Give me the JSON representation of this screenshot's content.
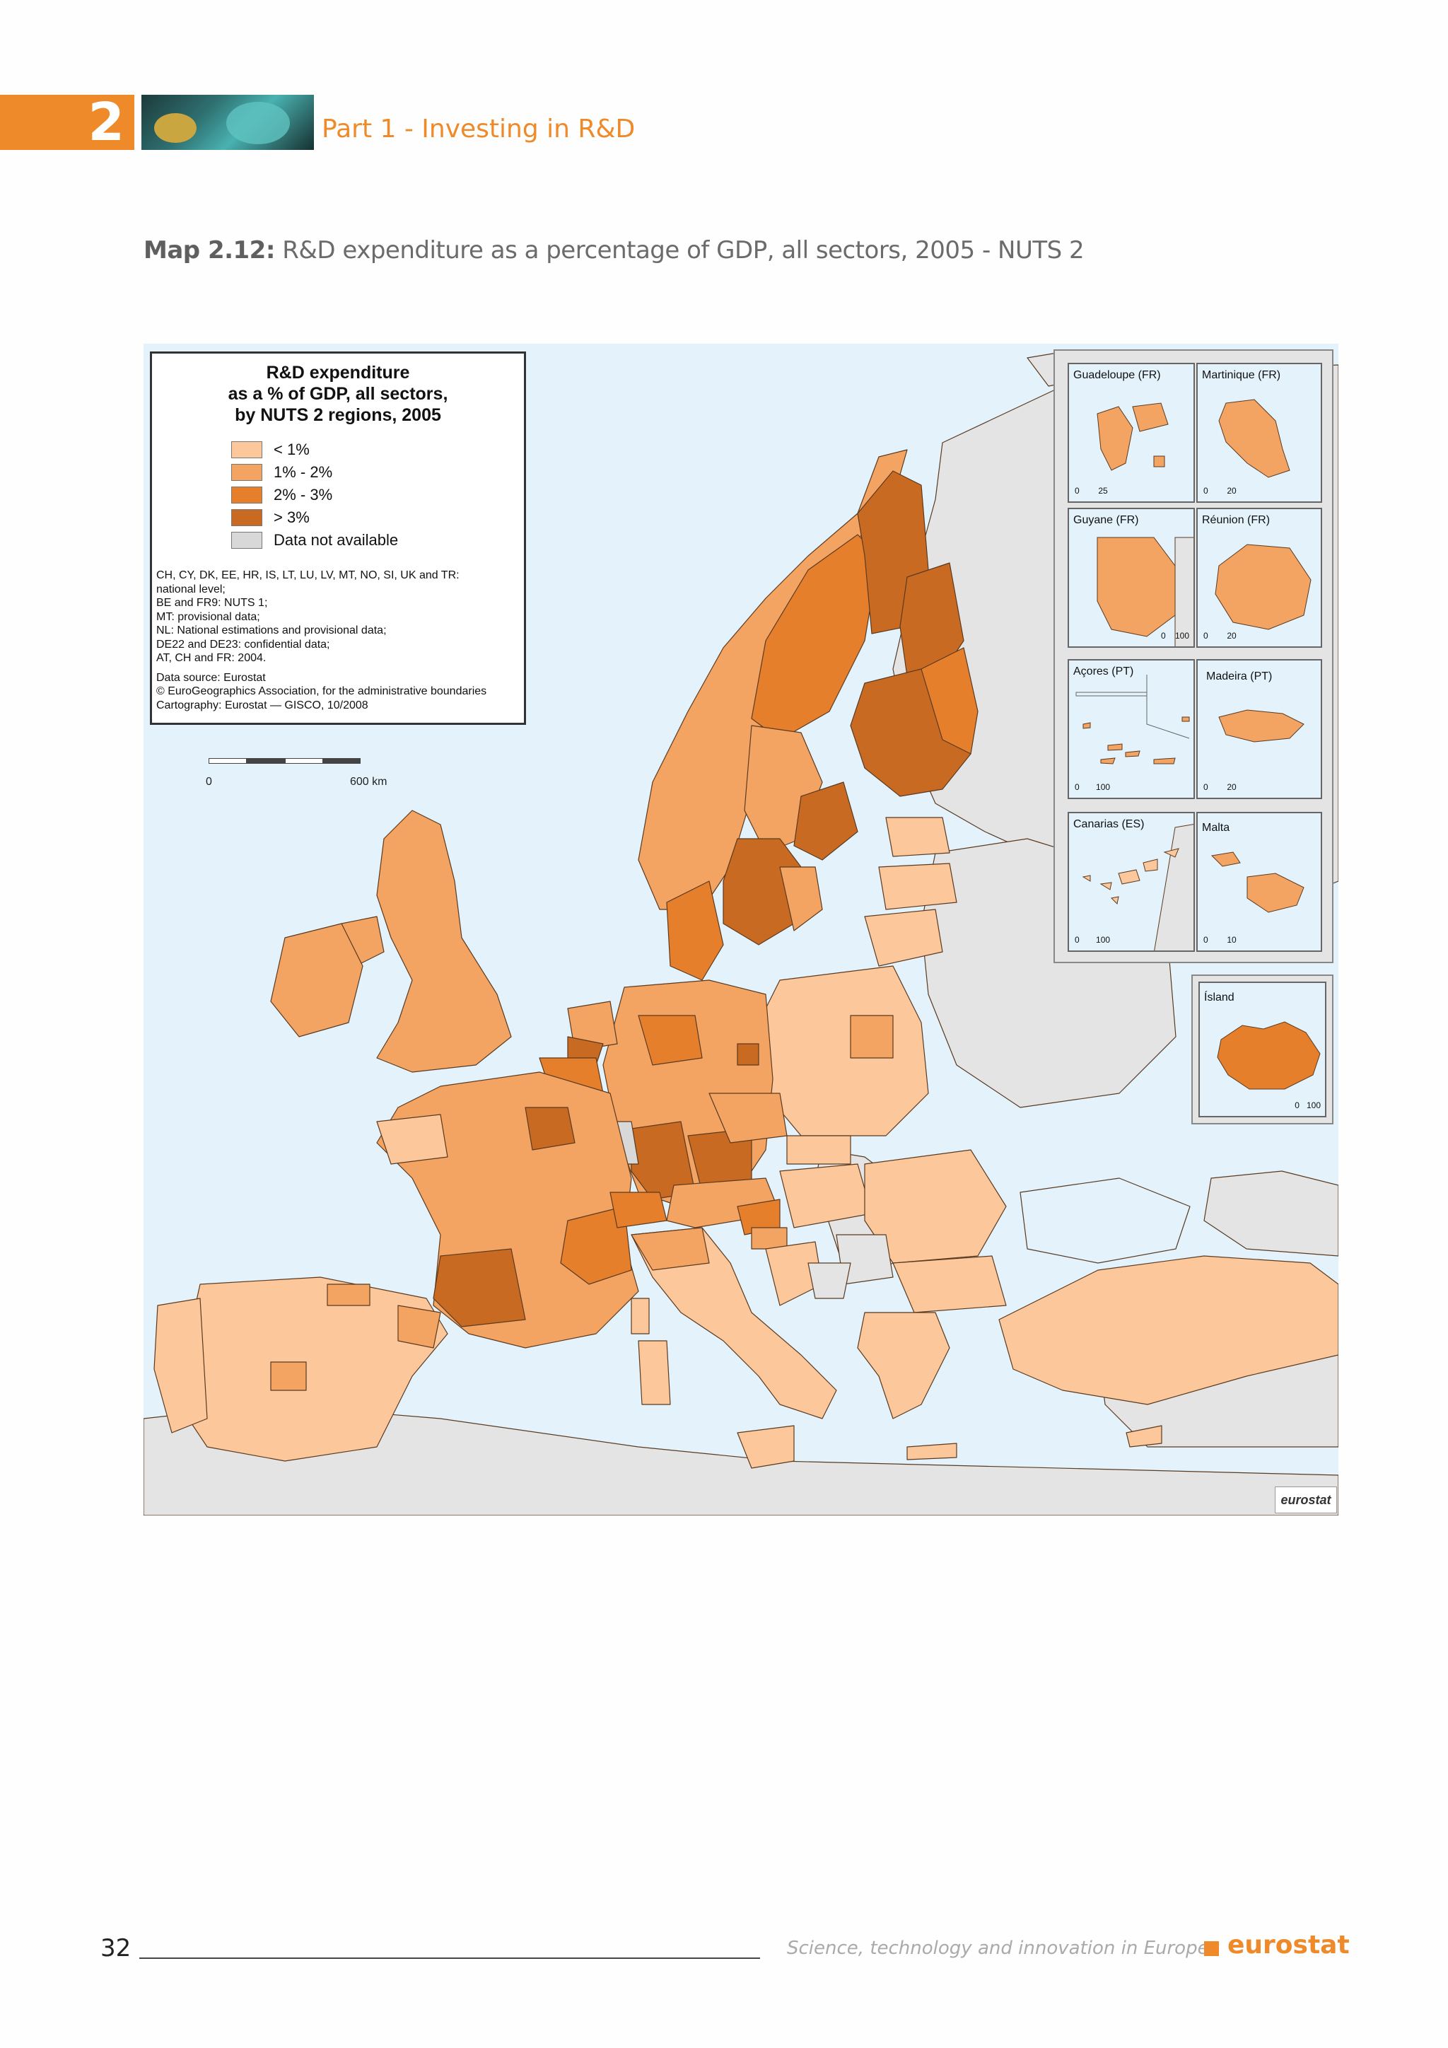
{
  "header": {
    "chapter_number": "2",
    "part_title": "Part 1 - Investing in R&D"
  },
  "map_title": {
    "label": "Map 2.12:",
    "text": "R&D expenditure as a percentage of GDP, all sectors, 2005 - NUTS 2"
  },
  "legend": {
    "title": [
      "R&D expenditure",
      "as a % of GDP, all sectors,",
      "by NUTS 2 regions, 2005"
    ],
    "items": [
      {
        "label": "< 1%",
        "color": "#fcc79a"
      },
      {
        "label": "1% - 2%",
        "color": "#f4a462"
      },
      {
        "label": "2% - 3%",
        "color": "#e57f2c"
      },
      {
        "label": "> 3%",
        "color": "#c96a22"
      },
      {
        "label": "Data not available",
        "color": "#d8d8d8"
      }
    ],
    "notes": [
      "CH, CY, DK, EE, HR, IS, LT, LU, LV, MT, NO, SI, UK and TR:",
      "national level;",
      "BE and FR9: NUTS 1;",
      "MT: provisional data;",
      "NL: National estimations and provisional data;",
      "DE22 and DE23: confidential data;",
      "AT, CH and FR: 2004."
    ],
    "sources": [
      "Data source: Eurostat",
      "© EuroGeographics Association, for the administrative boundaries",
      "Cartography: Eurostat — GISCO, 10/2008"
    ]
  },
  "scale": {
    "zero": "0",
    "end": "600 km"
  },
  "colors": {
    "sea": "#e3f2fb",
    "non_eu_land": "#e4e4e4",
    "border": "#5a3a20"
  },
  "insets": [
    {
      "label": "Guadeloupe (FR)",
      "scale_zero": "0",
      "scale_end": "25"
    },
    {
      "label": "Martinique (FR)",
      "scale_zero": "0",
      "scale_end": "20"
    },
    {
      "label": "Guyane (FR)",
      "scale_zero": "0",
      "scale_end": "100"
    },
    {
      "label": "Réunion (FR)",
      "scale_zero": "0",
      "scale_end": "20"
    },
    {
      "label": "Açores (PT)",
      "scale_zero": "0",
      "scale_end": "100"
    },
    {
      "label": "Madeira (PT)",
      "scale_zero": "0",
      "scale_end": "20"
    },
    {
      "label": "Canarias (ES)",
      "scale_zero": "0",
      "scale_end": "100"
    },
    {
      "label": "Malta",
      "scale_zero": "0",
      "scale_end": "10"
    },
    {
      "label": "Ísland",
      "scale_zero": "0",
      "scale_end": "100"
    }
  ],
  "logo": "eurostat",
  "footer": {
    "page_number": "32",
    "publication_title": "Science, technology and innovation in Europe",
    "brand": "eurostat"
  }
}
